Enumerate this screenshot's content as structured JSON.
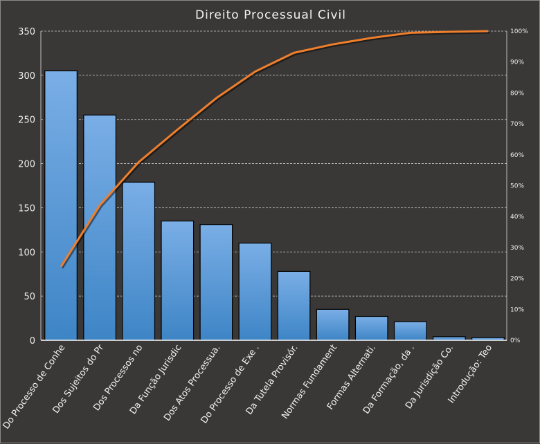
{
  "chart_data": {
    "type": "bar",
    "subtype": "pareto",
    "title": "Direito Processual Civil",
    "xlabel": "",
    "ylabel": "",
    "categories": [
      "Do Processo de Conhe",
      "Dos Sujeitos do Pr",
      "Dos Processos no",
      "Da Função Jurisdic",
      "Dos Atos  Processua.",
      "Do Processo de Exe .",
      "Da Tutela Provisór.",
      "Normas  Fundament",
      "Formas  Alternati.",
      "Da Formação, da  .",
      "Da Jurisdição Co.",
      "Introdução: Teo"
    ],
    "values": [
      305,
      255,
      179,
      135,
      131,
      110,
      78,
      35,
      27,
      21,
      4,
      3
    ],
    "ylim": [
      0,
      350
    ],
    "yticks": [
      "0",
      "50",
      "100",
      "150",
      "200",
      "250",
      "300",
      "350"
    ],
    "y2lim": [
      0,
      100
    ],
    "y2ticks": [
      "0%",
      "10%",
      "20%",
      "30%",
      "40%",
      "50%",
      "60%",
      "70%",
      "80%",
      "90%",
      "100%"
    ],
    "line_series": {
      "name": "Cumulative %",
      "type": "cumulative-percent"
    },
    "grid": true,
    "colors": {
      "bar_top": "#7aaee6",
      "bar_bottom": "#3e85c6",
      "line": "#f07f2c",
      "background": "#3a3836",
      "grid": "#cfcfcf"
    }
  }
}
